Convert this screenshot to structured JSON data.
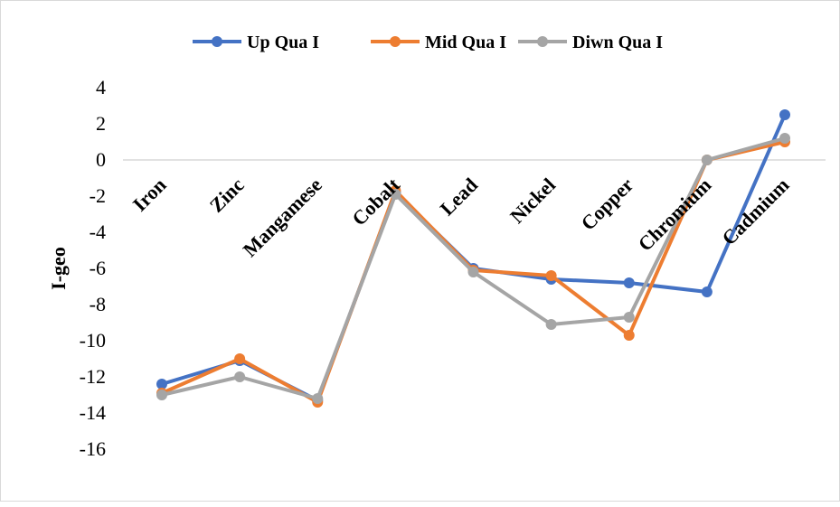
{
  "chart_data": {
    "type": "line",
    "title": "",
    "xlabel": "",
    "ylabel": "I-geo",
    "ylim": [
      -16,
      4
    ],
    "y_ticks": [
      4,
      2,
      0,
      -2,
      -4,
      -6,
      -8,
      -10,
      -12,
      -14,
      -16
    ],
    "grid": false,
    "legend_position": "top",
    "categories": [
      "Iron",
      "Zinc",
      "Mangamese",
      "Cobalt",
      "Lead",
      "Nickel",
      "Copper",
      "Chromium",
      "Cadmium"
    ],
    "series": [
      {
        "name": "Up Qua I",
        "color": "#4472c4",
        "values": [
          -12.4,
          -11.1,
          -13.3,
          -1.8,
          -6.0,
          -6.6,
          -6.8,
          -7.3,
          2.5
        ]
      },
      {
        "name": "Mid Qua I",
        "color": "#ed7d31",
        "values": [
          -12.9,
          -11.0,
          -13.4,
          -1.7,
          -6.1,
          -6.4,
          -9.7,
          0.0,
          1.0
        ]
      },
      {
        "name": "Diwn Qua I",
        "color": "#a5a5a5",
        "values": [
          -13.0,
          -12.0,
          -13.2,
          -1.9,
          -6.2,
          -9.1,
          -8.7,
          0.0,
          1.2
        ]
      }
    ]
  }
}
